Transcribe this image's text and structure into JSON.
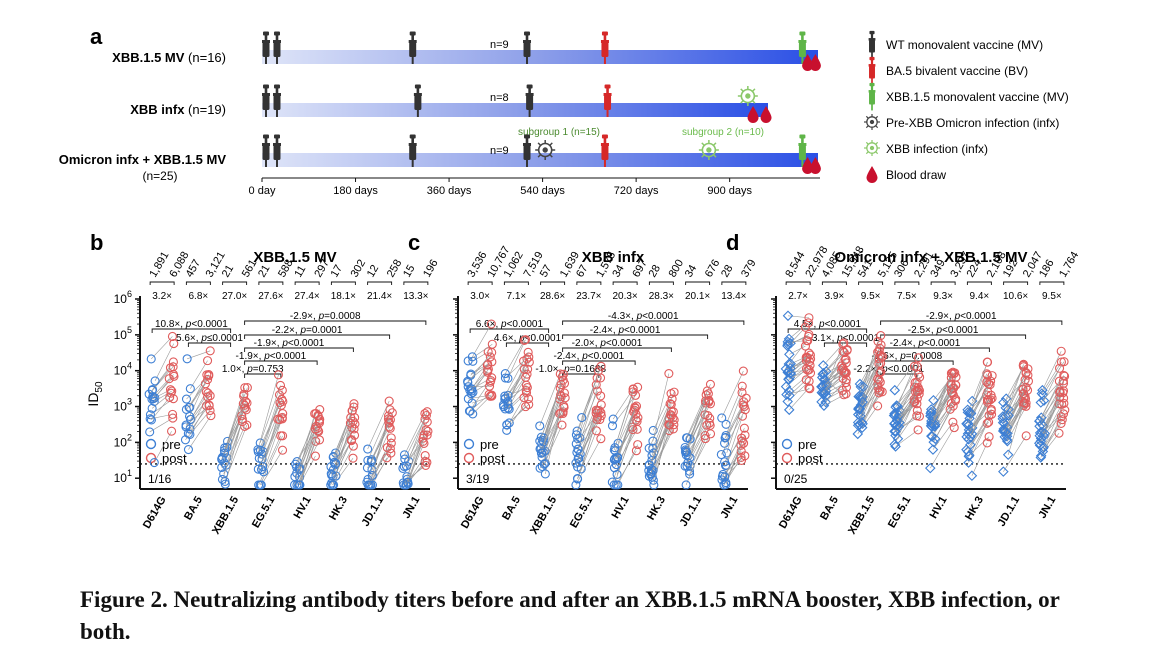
{
  "panel_a": {
    "letter": "a",
    "rows": [
      {
        "label": "XBB.1.5 MV",
        "n": "(n=16)",
        "mid": "n=9"
      },
      {
        "label": "XBB infx",
        "n": "(n=19)",
        "mid": "n=8"
      },
      {
        "label": "Omicron infx + XBB.1.5 MV",
        "n": "(n=25)",
        "mid": "n=9"
      }
    ],
    "subgroup1": "subgroup 1 (n=15)",
    "subgroup2": "subgroup 2 (n=10)",
    "axis_ticks": [
      "0 day",
      "180 days",
      "360 days",
      "540 days",
      "720 days",
      "900 days"
    ],
    "legend": [
      {
        "label": "WT monovalent vaccine (MV)",
        "icon": "syringe-icon",
        "color": "#333333"
      },
      {
        "label": "BA.5 bivalent vaccine (BV)",
        "icon": "syringe-icon",
        "color": "#d62828"
      },
      {
        "label": "XBB.1.5 monovalent vaccine (MV)",
        "icon": "syringe-icon",
        "color": "#5fb548"
      },
      {
        "label": "Pre-XBB Omicron infection (infx)",
        "icon": "virus-icon",
        "color": "#444444"
      },
      {
        "label": "XBB infection (infx)",
        "icon": "virus-icon",
        "color": "#8bc86a"
      },
      {
        "label": "Blood draw",
        "icon": "blood-drop-icon",
        "color": "#c8102e"
      }
    ]
  },
  "colors": {
    "pre": "#3d7fd4",
    "post": "#e05b5b",
    "bar_dark": "#2448e8",
    "bar_light": "#cfd8f5"
  },
  "chart_data": [
    {
      "type": "scatter",
      "letter": "b",
      "title": "XBB.1.5 MV",
      "ylabel": "ID50",
      "yscale": "log",
      "ylim": [
        5,
        1000000
      ],
      "yticks": [
        "10^1",
        "10^2",
        "10^3",
        "10^4",
        "10^5",
        "10^6"
      ],
      "detection_limit": 25,
      "categories": [
        "D614G",
        "BA.5",
        "XBB.1.5",
        "EG.5.1",
        "HV.1",
        "HK.3",
        "JD.1.1",
        "JN.1"
      ],
      "pre_gmt": [
        "1,891",
        "457",
        "21",
        "21",
        "11",
        "17",
        "12",
        "15"
      ],
      "post_gmt": [
        "6,088",
        "3,121",
        "561",
        "588",
        "297",
        "302",
        "258",
        "196"
      ],
      "fold": [
        "3.2×",
        "6.8×",
        "27.0×",
        "27.6×",
        "27.4×",
        "18.1×",
        "21.4×",
        "13.3×"
      ],
      "pre_values": [
        1891,
        457,
        21,
        21,
        11,
        17,
        12,
        15
      ],
      "post_values": [
        6088,
        3121,
        561,
        588,
        297,
        302,
        258,
        196
      ],
      "n": 16,
      "comparisons": [
        "10.8×, p<0.0001",
        "5.6×, p≤0.0001",
        "-2.9×, p=0.0008",
        "-2.2×, p=0.0001",
        "-1.9×, p<0.0001",
        "-1.9×, p<0.0001",
        "1.0×, p=0.753"
      ],
      "count_label": "1/16",
      "legend": [
        "pre",
        "post"
      ]
    },
    {
      "type": "scatter",
      "letter": "c",
      "title": "XBB infx",
      "ylabel": "ID50",
      "yscale": "log",
      "ylim": [
        5,
        1000000
      ],
      "detection_limit": 25,
      "categories": [
        "D614G",
        "BA.5",
        "XBB.1.5",
        "EG.5.1",
        "HV.1",
        "HK.3",
        "JD.1.1",
        "JN.1"
      ],
      "pre_gmt": [
        "3,536",
        "1,062",
        "57",
        "67",
        "34",
        "28",
        "34",
        "28"
      ],
      "post_gmt": [
        "10,767",
        "7,519",
        "1,639",
        "1,575",
        "697",
        "800",
        "676",
        "379"
      ],
      "fold": [
        "3.0×",
        "7.1×",
        "28.6×",
        "23.7×",
        "20.3×",
        "28.3×",
        "20.1×",
        "13.4×"
      ],
      "pre_values": [
        3536,
        1062,
        57,
        67,
        34,
        28,
        34,
        28
      ],
      "post_values": [
        10767,
        7519,
        1639,
        1575,
        697,
        800,
        676,
        379
      ],
      "n": 19,
      "comparisons": [
        "6.6×, p<0.0001",
        "4.6×, p<0.0001",
        "-4.3×, p<0.0001",
        "-2.4×, p<0.0001",
        "-2.0×, p<0.0001",
        "-2.4×, p<0.0001",
        "-1.0×, p=0.1688"
      ],
      "count_label": "3/19",
      "legend": [
        "pre",
        "post"
      ]
    },
    {
      "type": "scatter",
      "letter": "d",
      "title": "Omicron infx + XBB.1.5 MV",
      "ylabel": "ID50",
      "yscale": "log",
      "ylim": [
        5,
        1000000
      ],
      "detection_limit": 25,
      "categories": [
        "D614G",
        "BA.5",
        "XBB.1.5",
        "EG.5.1",
        "HV.1",
        "HK.3",
        "JD.1.1",
        "JN.1"
      ],
      "pre_gmt": [
        "8,544",
        "4,085",
        "541",
        "306",
        "349",
        "224",
        "192",
        "186"
      ],
      "post_gmt": [
        "22,978",
        "15,948",
        "5,125",
        "2,291",
        "3,237",
        "2,108",
        "2,047",
        "1,764"
      ],
      "fold": [
        "2.7×",
        "3.9×",
        "9.5×",
        "7.5×",
        "9.3×",
        "9.4×",
        "10.6×",
        "9.5×"
      ],
      "pre_values": [
        8544,
        4085,
        541,
        306,
        349,
        224,
        192,
        186
      ],
      "post_values": [
        22978,
        15948,
        5125,
        2291,
        3237,
        2108,
        2047,
        1764
      ],
      "n": 25,
      "comparisons": [
        "4.5×, p<0.0001",
        "3.1×, p<0.0001",
        "-2.9×, p<0.0001",
        "-2.5×, p<0.0001",
        "-2.4×, p<0.0001",
        "-1.6×, p=0.0008",
        "-2.2×, p<0.0001"
      ],
      "count_label": "0/25",
      "legend": [
        "pre",
        "post"
      ]
    }
  ],
  "caption": "Figure 2. Neutralizing antibody titers before and after an XBB.1.5 mRNA booster, XBB infection, or both."
}
